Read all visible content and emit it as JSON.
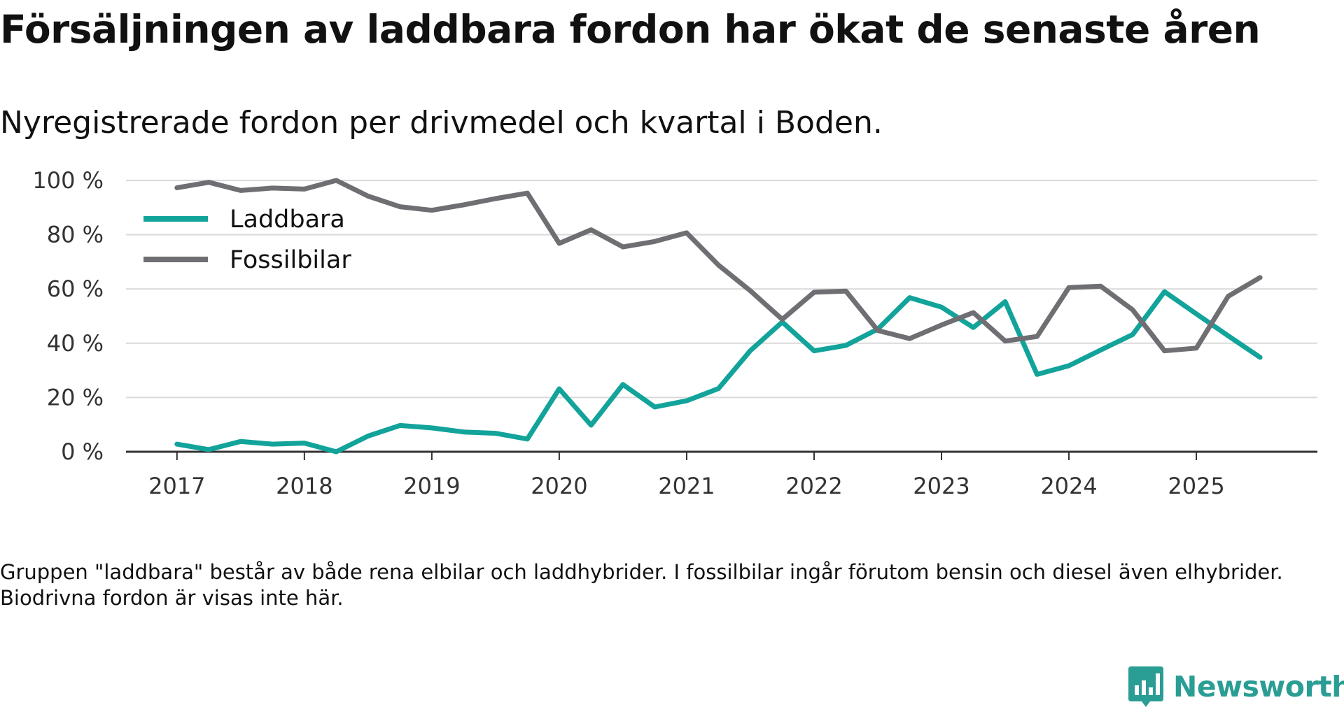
{
  "header": {
    "title": "Försäljningen av laddbara fordon har ökat de senaste åren",
    "subtitle": "Nyregistrerade fordon per drivmedel och kvartal i Boden."
  },
  "footnote": "Gruppen \"laddbara\" består av både rena elbilar och laddhybrider. I fossilbilar ingår förutom bensin och diesel även elhybrider. Biodrivna fordon är visas inte här.",
  "brand": {
    "name": "Newsworthy",
    "color": "#2a9d94",
    "icon": "bar-chart-pin-icon"
  },
  "chart_data": {
    "type": "line",
    "title": "Försäljningen av laddbara fordon har ökat de senaste åren",
    "subtitle": "Nyregistrerade fordon per drivmedel och kvartal i Boden.",
    "xlabel": "",
    "ylabel": "",
    "x": [
      2017.0,
      2017.25,
      2017.5,
      2017.75,
      2018.0,
      2018.25,
      2018.5,
      2018.75,
      2019.0,
      2019.25,
      2019.5,
      2019.75,
      2020.0,
      2020.25,
      2020.5,
      2020.75,
      2021.0,
      2021.25,
      2021.5,
      2021.75,
      2022.0,
      2022.25,
      2022.5,
      2022.75,
      2023.0,
      2023.25,
      2023.5,
      2023.75,
      2024.0,
      2024.25,
      2024.5,
      2024.75,
      2025.0,
      2025.25,
      2025.5
    ],
    "xlim": [
      2016.6,
      2025.95
    ],
    "ylim": [
      0,
      100
    ],
    "xticks": [
      2017,
      2018,
      2019,
      2020,
      2021,
      2022,
      2023,
      2024,
      2025
    ],
    "xtick_labels": [
      "2017",
      "2018",
      "2019",
      "2020",
      "2021",
      "2022",
      "2023",
      "2024",
      "2025"
    ],
    "yticks": [
      0,
      20,
      40,
      60,
      80,
      100
    ],
    "ytick_labels": [
      "0 %",
      "20 %",
      "40 %",
      "60 %",
      "80 %",
      "100 %"
    ],
    "grid": true,
    "legend_position": "top-left",
    "series": [
      {
        "name": "Laddbara",
        "color": "#12a39a",
        "values": [
          2.8,
          0.8,
          3.8,
          2.8,
          3.2,
          0,
          5.8,
          9.7,
          8.8,
          7.3,
          6.8,
          4.7,
          23.2,
          9.8,
          24.8,
          16.5,
          18.8,
          23.3,
          37.3,
          47.8,
          37.2,
          39.2,
          45.2,
          56.8,
          53.3,
          45.8,
          55.3,
          28.5,
          31.7,
          37.5,
          43.2,
          59,
          50.8,
          42.7,
          34.8
        ]
      },
      {
        "name": "Fossilbilar",
        "color": "#6f6e73",
        "values": [
          97.3,
          99.3,
          96.3,
          97.2,
          96.8,
          100,
          94.2,
          90.3,
          89,
          91,
          93.3,
          95.3,
          76.8,
          81.8,
          75.5,
          77.5,
          80.7,
          68.8,
          59.3,
          48.8,
          58.8,
          59.2,
          44.7,
          41.7,
          46.7,
          51.3,
          40.8,
          42.5,
          60.5,
          61,
          52.3,
          37.2,
          38.2,
          57.3,
          64.2
        ]
      }
    ]
  }
}
